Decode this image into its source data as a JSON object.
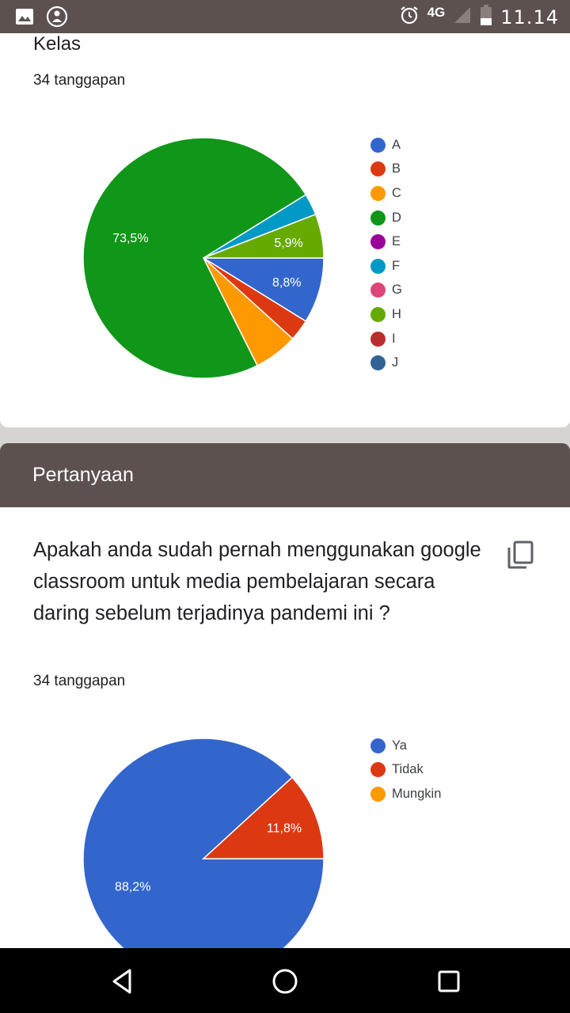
{
  "status_bar": {
    "network": "4G",
    "time": "11.14"
  },
  "card_kelas": {
    "title": "Kelas",
    "responses": "34 tanggapan"
  },
  "section": {
    "title": "Pertanyaan"
  },
  "card_question": {
    "question": "Apakah anda sudah pernah menggunakan google classroom untuk media pembelajaran secara daring sebelum terjadinya pandemi ini ?",
    "responses": "34 tanggapan"
  },
  "chart_data": [
    {
      "type": "pie",
      "title": "",
      "legend_position": "right",
      "slices": [
        {
          "label": "A",
          "value": 8.8,
          "color": "#3366cc",
          "data_label": "8,8%"
        },
        {
          "label": "B",
          "value": 2.9,
          "color": "#dc3912",
          "data_label": ""
        },
        {
          "label": "C",
          "value": 5.9,
          "color": "#ff9900",
          "data_label": ""
        },
        {
          "label": "D",
          "value": 73.5,
          "color": "#109618",
          "data_label": "73,5%"
        },
        {
          "label": "E",
          "value": 0,
          "color": "#990099",
          "data_label": ""
        },
        {
          "label": "F",
          "value": 2.9,
          "color": "#0099c6",
          "data_label": ""
        },
        {
          "label": "G",
          "value": 0,
          "color": "#dd4477",
          "data_label": ""
        },
        {
          "label": "H",
          "value": 5.9,
          "color": "#66aa00",
          "data_label": "5,9%"
        },
        {
          "label": "I",
          "value": 0,
          "color": "#b82e2e",
          "data_label": ""
        },
        {
          "label": "J",
          "value": 0,
          "color": "#316395",
          "data_label": ""
        }
      ]
    },
    {
      "type": "pie",
      "title": "",
      "legend_position": "right",
      "slices": [
        {
          "label": "Ya",
          "value": 88.2,
          "color": "#3366cc",
          "data_label": "88,2%"
        },
        {
          "label": "Tidak",
          "value": 11.8,
          "color": "#dc3912",
          "data_label": "11,8%"
        },
        {
          "label": "Mungkin",
          "value": 0,
          "color": "#ff9900",
          "data_label": ""
        }
      ]
    }
  ],
  "icons": {
    "status_left": [
      "image-icon",
      "emblem-icon"
    ],
    "status_right": [
      "alarm-icon",
      "signal-icon",
      "battery-icon"
    ],
    "copy": "copy-icon",
    "nav": [
      "back-icon",
      "home-icon",
      "recents-icon"
    ]
  }
}
